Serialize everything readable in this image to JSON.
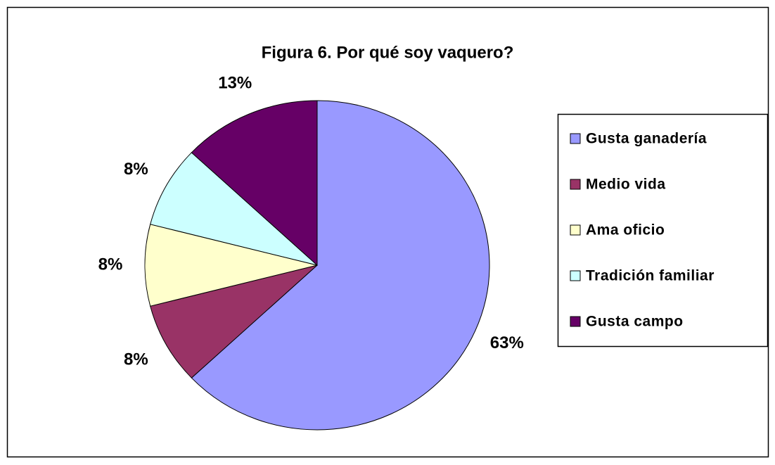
{
  "chart_data": {
    "type": "pie",
    "title": "Figura 6.  Por qué soy vaquero?",
    "categories": [
      "Gusta ganadería",
      "Medio vida",
      "Ama oficio",
      "Tradición familiar",
      "Gusta campo"
    ],
    "values": [
      63,
      8,
      8,
      8,
      13
    ],
    "value_labels": [
      "63%",
      "8%",
      "8%",
      "8%",
      "13%"
    ],
    "colors": [
      "#9999ff",
      "#993366",
      "#ffffcc",
      "#ccffff",
      "#660066"
    ],
    "legend": "right"
  }
}
